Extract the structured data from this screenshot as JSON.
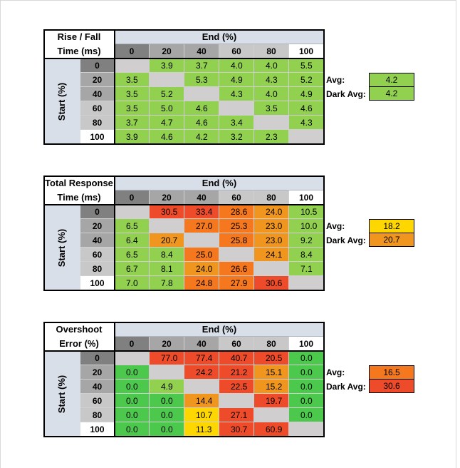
{
  "colors": {
    "gray_dark": "#808080",
    "gray_mid": "#a6a6a6",
    "gray_light": "#c8c8c8",
    "header_blue": "#d9dfe8",
    "diag_gray": "#d0cece",
    "green_light": "#92d050",
    "green": "#4cc84c",
    "yellow": "#ffd700",
    "orange": "#f0961e",
    "orange_dark": "#f5781e",
    "red": "#ee4b2b"
  },
  "end_label": "End (%)",
  "start_label": "Start (%)",
  "steps": [
    "0",
    "20",
    "40",
    "60",
    "80",
    "100"
  ],
  "avg_label": "Avg:",
  "dark_avg_label": "Dark Avg:",
  "chart_data": [
    {
      "type": "table",
      "title_line1": "Rise / Fall",
      "title_line2": "Time (ms)",
      "rows": [
        [
          null,
          3.9,
          3.7,
          4.0,
          4.0,
          5.5
        ],
        [
          3.5,
          null,
          5.3,
          4.9,
          4.3,
          5.2
        ],
        [
          3.5,
          5.2,
          null,
          4.3,
          4.0,
          4.9
        ],
        [
          3.5,
          5.0,
          4.6,
          null,
          3.5,
          4.6
        ],
        [
          3.7,
          4.7,
          4.6,
          3.4,
          null,
          4.3
        ],
        [
          3.9,
          4.6,
          4.2,
          3.2,
          2.3,
          null
        ]
      ],
      "row_colors": [
        [
          "diag_gray",
          "green_light",
          "green_light",
          "green_light",
          "green_light",
          "green_light"
        ],
        [
          "green_light",
          "diag_gray",
          "green_light",
          "green_light",
          "green_light",
          "green_light"
        ],
        [
          "green_light",
          "green_light",
          "diag_gray",
          "green_light",
          "green_light",
          "green_light"
        ],
        [
          "green_light",
          "green_light",
          "green_light",
          "diag_gray",
          "green_light",
          "green_light"
        ],
        [
          "green_light",
          "green_light",
          "green_light",
          "green_light",
          "diag_gray",
          "green_light"
        ],
        [
          "green_light",
          "green_light",
          "green_light",
          "green_light",
          "green_light",
          "diag_gray"
        ]
      ],
      "avg": "4.2",
      "dark_avg": "4.2",
      "avg_color": "green_light",
      "dark_avg_color": "green_light"
    },
    {
      "type": "table",
      "title_line1": "Total Response",
      "title_line2": "Time (ms)",
      "rows": [
        [
          null,
          30.5,
          33.4,
          28.6,
          24.0,
          10.5
        ],
        [
          6.5,
          null,
          27.0,
          25.3,
          23.0,
          10.0
        ],
        [
          6.4,
          20.7,
          null,
          25.8,
          23.0,
          9.2
        ],
        [
          6.5,
          8.4,
          25.0,
          null,
          24.1,
          8.4
        ],
        [
          6.7,
          8.1,
          24.0,
          26.6,
          null,
          7.1
        ],
        [
          7.0,
          7.8,
          24.8,
          27.9,
          30.6,
          null
        ]
      ],
      "row_colors": [
        [
          "diag_gray",
          "red",
          "red",
          "orange_dark",
          "orange",
          "green_light"
        ],
        [
          "green_light",
          "diag_gray",
          "orange_dark",
          "orange_dark",
          "orange",
          "green_light"
        ],
        [
          "green_light",
          "orange",
          "diag_gray",
          "orange_dark",
          "orange",
          "green_light"
        ],
        [
          "green_light",
          "green_light",
          "orange_dark",
          "diag_gray",
          "orange",
          "green_light"
        ],
        [
          "green_light",
          "green_light",
          "orange",
          "orange_dark",
          "diag_gray",
          "green_light"
        ],
        [
          "green_light",
          "green_light",
          "orange_dark",
          "orange_dark",
          "red",
          "diag_gray"
        ]
      ],
      "avg": "18.2",
      "dark_avg": "20.7",
      "avg_color": "yellow",
      "dark_avg_color": "orange"
    },
    {
      "type": "table",
      "title_line1": "Overshoot",
      "title_line2": "Error (%)",
      "rows": [
        [
          null,
          77.0,
          77.4,
          40.7,
          20.5,
          0.0
        ],
        [
          0.0,
          null,
          24.2,
          21.2,
          15.1,
          0.0
        ],
        [
          0.0,
          4.9,
          null,
          22.5,
          15.2,
          0.0
        ],
        [
          0.0,
          0.0,
          14.4,
          null,
          19.7,
          0.0
        ],
        [
          0.0,
          0.0,
          10.7,
          27.1,
          null,
          0.0
        ],
        [
          0.0,
          0.0,
          11.3,
          30.7,
          60.9,
          null
        ]
      ],
      "row_colors": [
        [
          "diag_gray",
          "red",
          "red",
          "red",
          "red",
          "green"
        ],
        [
          "green",
          "diag_gray",
          "red",
          "red",
          "orange",
          "green"
        ],
        [
          "green",
          "green_light",
          "diag_gray",
          "red",
          "orange",
          "green"
        ],
        [
          "green",
          "green",
          "orange",
          "diag_gray",
          "red",
          "green"
        ],
        [
          "green",
          "green",
          "yellow",
          "red",
          "diag_gray",
          "green"
        ],
        [
          "green",
          "green",
          "yellow",
          "red",
          "red",
          "diag_gray"
        ]
      ],
      "avg": "16.5",
      "dark_avg": "30.6",
      "avg_color": "orange_dark",
      "dark_avg_color": "red"
    }
  ]
}
